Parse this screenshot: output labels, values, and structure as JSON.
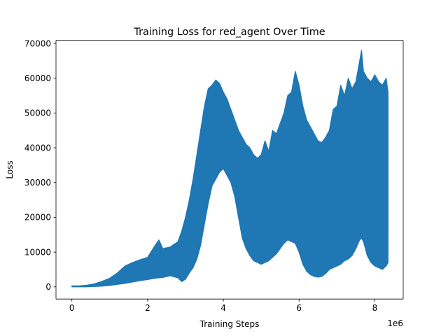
{
  "chart_data": {
    "type": "line",
    "title": "Training Loss for red_agent Over Time",
    "xlabel": "Training Steps",
    "ylabel": "Loss",
    "x_offset_label": "1e6",
    "xlim": [
      -0.42,
      8.75
    ],
    "ylim": [
      -3500,
      70900
    ],
    "x_ticks": [
      0,
      2,
      4,
      6,
      8
    ],
    "x_tick_labels": [
      "0",
      "2",
      "4",
      "6",
      "8"
    ],
    "y_ticks": [
      0,
      10000,
      20000,
      30000,
      40000,
      50000,
      60000,
      70000
    ],
    "y_tick_labels": [
      "0",
      "10000",
      "20000",
      "30000",
      "40000",
      "50000",
      "60000",
      "70000"
    ],
    "grid": false,
    "legend": "none",
    "series": [
      {
        "color": "#1f77b4",
        "x": [
          0,
          0.2,
          0.4,
          0.6,
          0.8,
          1.0,
          1.2,
          1.4,
          1.6,
          1.8,
          2.0,
          2.2,
          2.3,
          2.4,
          2.6,
          2.8,
          2.9,
          3.0,
          3.1,
          3.2,
          3.3,
          3.4,
          3.5,
          3.6,
          3.7,
          3.8,
          3.9,
          4.0,
          4.1,
          4.2,
          4.3,
          4.4,
          4.5,
          4.6,
          4.7,
          4.8,
          4.9,
          5.0,
          5.1,
          5.2,
          5.3,
          5.4,
          5.5,
          5.6,
          5.7,
          5.8,
          5.9,
          6.0,
          6.1,
          6.2,
          6.3,
          6.4,
          6.5,
          6.6,
          6.7,
          6.8,
          6.9,
          7.0,
          7.1,
          7.2,
          7.3,
          7.4,
          7.5,
          7.6,
          7.65,
          7.7,
          7.8,
          7.9,
          8.0,
          8.1,
          8.2,
          8.3,
          8.35
        ],
        "low": [
          0,
          0,
          0,
          100,
          200,
          400,
          700,
          1000,
          1400,
          1800,
          2100,
          2500,
          2600,
          2700,
          3200,
          2600,
          1500,
          2200,
          4000,
          5500,
          8000,
          12000,
          18000,
          24000,
          29000,
          31000,
          33000,
          34000,
          32000,
          30000,
          26000,
          20000,
          14000,
          11000,
          9000,
          7500,
          7000,
          6500,
          7000,
          7500,
          8500,
          9500,
          11000,
          12500,
          13500,
          13000,
          12500,
          10000,
          6500,
          4500,
          3500,
          3000,
          2800,
          3000,
          3800,
          5000,
          5500,
          6000,
          6500,
          7500,
          8000,
          9000,
          11000,
          13500,
          14000,
          13000,
          9000,
          7000,
          6000,
          5500,
          5000,
          6000,
          7000
        ],
        "high": [
          300,
          300,
          500,
          900,
          1600,
          2500,
          4000,
          6000,
          7000,
          7800,
          8500,
          12000,
          13500,
          11000,
          11500,
          13000,
          16000,
          20000,
          25000,
          31000,
          38000,
          45000,
          52000,
          57000,
          58000,
          59500,
          58500,
          56000,
          54000,
          51000,
          48000,
          45000,
          43000,
          41000,
          40000,
          38000,
          37000,
          38000,
          42000,
          39000,
          45000,
          44000,
          47000,
          50000,
          55000,
          56000,
          62000,
          58000,
          52000,
          48000,
          46000,
          44000,
          42000,
          41500,
          43000,
          45000,
          51000,
          52000,
          58000,
          55000,
          60000,
          57000,
          59000,
          65000,
          68000,
          62000,
          60000,
          59000,
          61000,
          59000,
          58000,
          60000,
          56000
        ]
      }
    ]
  }
}
